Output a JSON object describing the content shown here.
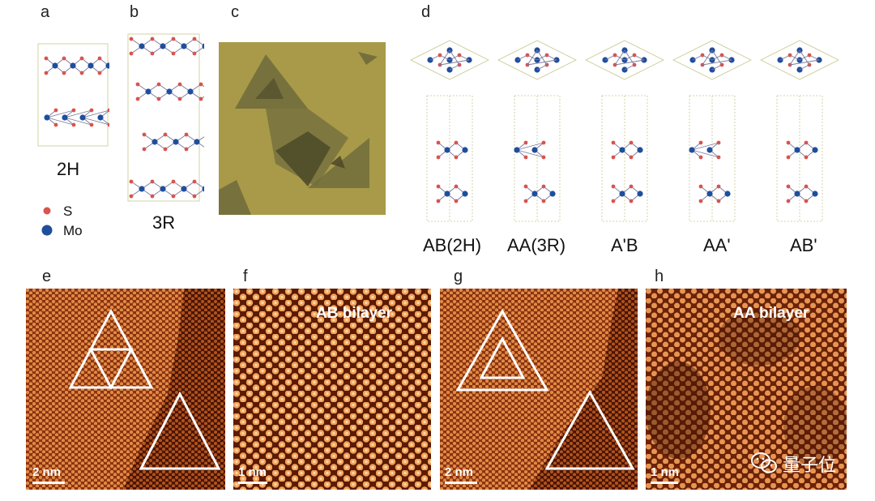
{
  "panel_letters": {
    "a": "a",
    "b": "b",
    "c": "c",
    "d": "d",
    "e": "e",
    "f": "f",
    "g": "g",
    "h": "h"
  },
  "panel_a": {
    "caption": "2H"
  },
  "panel_b": {
    "caption": "3R"
  },
  "legend": {
    "s_label": "S",
    "mo_label": "Mo",
    "s_color": "#d9534f",
    "mo_color": "#1f4e9c"
  },
  "panel_d": {
    "captions": [
      "AB(2H)",
      "AA(3R)",
      "A'B",
      "AA'",
      "AB'"
    ]
  },
  "panel_e": {
    "scale_label": "2 nm"
  },
  "panel_f": {
    "title": "AB bilayer",
    "scale_label": "1 nm"
  },
  "panel_g": {
    "scale_label": "2 nm"
  },
  "panel_h": {
    "title": "AA bilayer",
    "scale_label": "1 nm"
  },
  "watermark": {
    "text": "量子位",
    "icon": "wechat-icon"
  },
  "colors": {
    "stm_bright": "#f2a35a",
    "stm_dark": "#5a1a04",
    "optical_bg": "#a89a48",
    "flake": "#6f6a3c"
  }
}
